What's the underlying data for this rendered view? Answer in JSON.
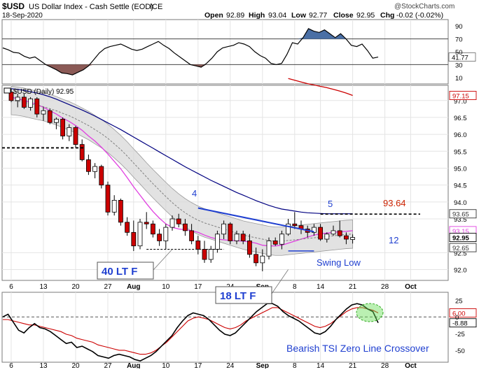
{
  "header": {
    "symbol": "$USD",
    "title": "US Dollar Index - Cash Settle (EOD)",
    "exchange": "ICE",
    "date": "18-Sep-2020",
    "watermark": "@StockCharts.com",
    "open_label": "Open",
    "open": "92.89",
    "high_label": "High",
    "high": "93.04",
    "low_label": "Low",
    "low": "92.77",
    "close_label": "Close",
    "close": "92.95",
    "chg_label": "Chg",
    "chg": "-0.02 (-0.02%)"
  },
  "rsi_panel": {
    "scale": [
      "90",
      "70",
      "50",
      "30",
      "10"
    ],
    "current_label": "41.77",
    "current_value": 41.77,
    "line_color": "#000000",
    "oversold_fill": "#8b5a56",
    "values": [
      56,
      53,
      49,
      48,
      43,
      40,
      42,
      36,
      30,
      26,
      22,
      17,
      16,
      14,
      18,
      22,
      28,
      38,
      48,
      55,
      58,
      60,
      62,
      58,
      54,
      52,
      54,
      58,
      62,
      66,
      60,
      55,
      48,
      42,
      36,
      30,
      28,
      26,
      32,
      40,
      50,
      56,
      58,
      60,
      64,
      62,
      58,
      50,
      44,
      40,
      32,
      30,
      32,
      46,
      64,
      62,
      72,
      86,
      82,
      80,
      84,
      78,
      72,
      78,
      70,
      60,
      58,
      62,
      52,
      40,
      41.77
    ]
  },
  "price_panel": {
    "legend": "$USD (Daily) 92.95",
    "scale": [
      "97.15",
      "97.0",
      "96.5",
      "96.0",
      "95.5",
      "95.0",
      "94.5",
      "94.0",
      "93.65",
      "93.5",
      "93.15",
      "92.95",
      "92.65",
      "92.5",
      "92.0"
    ],
    "scale_values": [
      97.0,
      96.5,
      96.0,
      95.5,
      95.0,
      94.5,
      94.0,
      93.5,
      92.5,
      92.0
    ],
    "ylim": [
      91.68,
      97.45
    ],
    "badges": [
      {
        "label": "97.15",
        "value": 97.15,
        "color": "#cc0000"
      },
      {
        "label": "93.65",
        "value": 93.65,
        "color": "#333333"
      },
      {
        "label": "93.15",
        "value": 93.15,
        "color": "#e040e0"
      },
      {
        "label": "92.95",
        "value": 92.95,
        "color": "#000000"
      },
      {
        "label": "92.65",
        "value": 92.65,
        "color": "#333333"
      }
    ],
    "annotations": {
      "wave4": "4",
      "wave5": "5",
      "price_target": "93.64",
      "price_target_value": 93.64,
      "count_12": "12",
      "swing_low": "Swing Low",
      "callout_aug": "40 LT F",
      "callout_sep": "18 LT F"
    },
    "colors": {
      "up": "#ffffff",
      "down": "#cc0000",
      "ma200": "#cc0000",
      "ma50": "#000080",
      "ma20": "#808080",
      "ma10": "#e040e0",
      "band": "#d8d8d8",
      "trendline": "#1f3fd0",
      "annot_blue": "#1f3fd0",
      "annot_red": "#cc0000"
    }
  },
  "tsi_panel": {
    "scale": [
      "25",
      "0",
      "-25",
      "-50"
    ],
    "scale_values": [
      25,
      0,
      -25,
      -50
    ],
    "ylim": [
      -68,
      37
    ],
    "badges": [
      {
        "label": "6.00",
        "value": 6.0,
        "color": "#cc0000"
      },
      {
        "label": "-8.88",
        "value": -8.88,
        "color": "#000000"
      }
    ],
    "note": "Bearish TSI Zero Line Crossover",
    "tsi_values": [
      0,
      4,
      -8,
      -20,
      -24,
      -16,
      -10,
      -16,
      -18,
      -22,
      -28,
      -34,
      -40,
      -38,
      -46,
      -44,
      -48,
      -52,
      -58,
      -60,
      -62,
      -58,
      -56,
      -58,
      -60,
      -64,
      -66,
      -62,
      -58,
      -52,
      -44,
      -36,
      -28,
      -16,
      -6,
      2,
      6,
      4,
      2,
      -4,
      -12,
      -20,
      -26,
      -28,
      -24,
      -16,
      -8,
      0,
      8,
      14,
      20,
      20,
      16,
      8,
      2,
      -2,
      -6,
      -12,
      -18,
      -24,
      -26,
      -22,
      -14,
      -4,
      4,
      12,
      18,
      20,
      18,
      12,
      8,
      -8.88
    ],
    "signal_values": [
      -4,
      -4,
      -6,
      -8,
      -10,
      -12,
      -12,
      -14,
      -16,
      -18,
      -20,
      -22,
      -26,
      -28,
      -32,
      -34,
      -36,
      -38,
      -42,
      -44,
      -46,
      -48,
      -50,
      -50,
      -52,
      -54,
      -56,
      -56,
      -54,
      -50,
      -44,
      -38,
      -30,
      -22,
      -14,
      -6,
      -2,
      0,
      -2,
      -4,
      -8,
      -12,
      -16,
      -18,
      -16,
      -12,
      -6,
      -2,
      2,
      6,
      10,
      14,
      14,
      10,
      6,
      2,
      -2,
      -6,
      -10,
      -14,
      -16,
      -14,
      -10,
      -4,
      2,
      8,
      12,
      14,
      14,
      12,
      10,
      6.0
    ],
    "zero_line_color": "#555555"
  },
  "x_axis": {
    "ticks": [
      {
        "label": "6",
        "i": 0
      },
      {
        "label": "13",
        "i": 5
      },
      {
        "label": "20",
        "i": 10
      },
      {
        "label": "27",
        "i": 15
      },
      {
        "label": "Aug",
        "i": 19,
        "bold": true
      },
      {
        "label": "10",
        "i": 24
      },
      {
        "label": "17",
        "i": 29
      },
      {
        "label": "24",
        "i": 34
      },
      {
        "label": "Sep",
        "i": 39,
        "bold": true
      },
      {
        "label": "8",
        "i": 44
      },
      {
        "label": "14",
        "i": 48
      },
      {
        "label": "21",
        "i": 53
      },
      {
        "label": "28",
        "i": 58
      },
      {
        "label": "Oct",
        "i": 62,
        "bold": true
      }
    ]
  },
  "chart_data": {
    "type": "candlestick",
    "title": "$USD US Dollar Index - Cash Settle (EOD)",
    "series": [
      {
        "name": "$USD (Daily)",
        "type": "candlestick",
        "ohlc": [
          [
            97.25,
            97.35,
            96.95,
            97.0
          ],
          [
            97.0,
            97.2,
            96.8,
            97.1
          ],
          [
            97.1,
            97.2,
            96.75,
            96.8
          ],
          [
            96.8,
            97.1,
            96.7,
            97.05
          ],
          [
            97.05,
            97.1,
            96.5,
            96.6
          ],
          [
            96.6,
            96.8,
            96.4,
            96.7
          ],
          [
            96.7,
            96.75,
            96.3,
            96.35
          ],
          [
            96.35,
            96.5,
            96.15,
            96.45
          ],
          [
            96.45,
            96.5,
            95.85,
            95.95
          ],
          [
            95.95,
            96.3,
            95.8,
            96.2
          ],
          [
            96.2,
            96.25,
            95.6,
            95.7
          ],
          [
            95.7,
            95.85,
            95.2,
            95.25
          ],
          [
            95.25,
            95.4,
            94.8,
            94.9
          ],
          [
            94.9,
            95.15,
            94.7,
            95.05
          ],
          [
            95.05,
            95.1,
            94.4,
            94.5
          ],
          [
            94.5,
            94.6,
            93.6,
            93.7
          ],
          [
            93.7,
            94.2,
            93.6,
            94.05
          ],
          [
            94.05,
            94.1,
            93.3,
            93.4
          ],
          [
            93.4,
            93.55,
            93.0,
            93.1
          ],
          [
            93.1,
            93.45,
            92.55,
            92.7
          ],
          [
            92.7,
            93.5,
            92.6,
            93.4
          ],
          [
            93.4,
            93.7,
            93.2,
            93.35
          ],
          [
            93.35,
            93.45,
            92.95,
            93.05
          ],
          [
            93.05,
            93.2,
            92.7,
            92.85
          ],
          [
            92.85,
            93.35,
            92.6,
            93.25
          ],
          [
            93.25,
            93.6,
            93.15,
            93.5
          ],
          [
            93.5,
            93.65,
            93.25,
            93.35
          ],
          [
            93.35,
            93.5,
            93.0,
            93.15
          ],
          [
            93.15,
            93.35,
            92.75,
            92.85
          ],
          [
            92.85,
            93.0,
            92.45,
            92.6
          ],
          [
            92.6,
            92.85,
            92.2,
            92.3
          ],
          [
            92.3,
            92.7,
            92.2,
            92.6
          ],
          [
            92.6,
            93.15,
            92.5,
            93.05
          ],
          [
            93.05,
            93.45,
            92.9,
            93.35
          ],
          [
            93.35,
            93.4,
            92.75,
            92.85
          ],
          [
            92.85,
            93.15,
            92.75,
            93.05
          ],
          [
            93.05,
            93.15,
            92.75,
            92.85
          ],
          [
            92.85,
            93.05,
            92.35,
            92.45
          ],
          [
            92.45,
            92.65,
            92.1,
            92.2
          ],
          [
            92.2,
            92.6,
            91.95,
            92.4
          ],
          [
            92.4,
            92.95,
            92.3,
            92.85
          ],
          [
            92.85,
            92.95,
            92.7,
            92.75
          ],
          [
            92.75,
            93.15,
            92.6,
            93.05
          ],
          [
            93.05,
            93.5,
            93.0,
            93.35
          ],
          [
            93.35,
            93.7,
            93.2,
            93.3
          ],
          [
            93.3,
            93.45,
            93.05,
            93.2
          ],
          [
            93.2,
            93.3,
            92.95,
            93.1
          ],
          [
            93.1,
            93.35,
            93.0,
            93.25
          ],
          [
            93.25,
            93.35,
            92.85,
            92.9
          ],
          [
            92.9,
            93.1,
            92.8,
            93.05
          ],
          [
            93.05,
            93.3,
            93.0,
            93.15
          ],
          [
            93.15,
            93.45,
            92.95,
            93.0
          ],
          [
            93.0,
            93.1,
            92.75,
            92.9
          ],
          [
            92.89,
            93.04,
            92.77,
            92.95
          ]
        ]
      },
      {
        "name": "MA 10",
        "values": [
          97.1,
          97.05,
          97.0,
          96.95,
          96.88,
          96.8,
          96.7,
          96.6,
          96.48,
          96.38,
          96.26,
          96.12,
          95.95,
          95.8,
          95.62,
          95.42,
          95.2,
          94.98,
          94.72,
          94.45,
          94.2,
          93.95,
          93.72,
          93.52,
          93.35,
          93.25,
          93.2,
          93.18,
          93.15,
          93.1,
          93.02,
          92.95,
          92.9,
          92.88,
          92.86,
          92.85,
          92.84,
          92.82,
          92.78,
          92.72,
          92.7,
          92.7,
          92.72,
          92.78,
          92.84,
          92.9,
          92.96,
          93.02,
          93.06,
          93.08,
          93.1,
          93.12,
          93.13,
          93.15
        ]
      },
      {
        "name": "MA 20",
        "values": [
          97.0,
          96.98,
          96.95,
          96.9,
          96.86,
          96.82,
          96.76,
          96.7,
          96.62,
          96.55,
          96.46,
          96.36,
          96.26,
          96.14,
          96.02,
          95.88,
          95.72,
          95.55,
          95.36,
          95.15,
          94.95,
          94.74,
          94.54,
          94.35,
          94.16,
          93.98,
          93.82,
          93.68,
          93.56,
          93.46,
          93.38,
          93.32,
          93.26,
          93.2,
          93.14,
          93.08,
          93.02,
          92.98,
          92.94,
          92.9,
          92.86,
          92.84,
          92.84,
          92.86,
          92.88,
          92.9,
          92.92,
          92.94,
          92.96,
          92.98,
          93.0,
          93.02,
          93.04,
          93.05
        ]
      },
      {
        "name": "MA 50",
        "values": [
          97.35,
          97.33,
          97.3,
          97.26,
          97.22,
          97.17,
          97.11,
          97.04,
          96.96,
          96.88,
          96.8,
          96.72,
          96.63,
          96.54,
          96.44,
          96.34,
          96.24,
          96.14,
          96.03,
          95.92,
          95.81,
          95.7,
          95.59,
          95.48,
          95.37,
          95.26,
          95.15,
          95.04,
          94.94,
          94.84,
          94.74,
          94.64,
          94.55,
          94.46,
          94.37,
          94.28,
          94.2,
          94.12,
          94.04,
          93.97,
          93.9,
          93.84,
          93.79,
          93.76,
          93.73,
          93.7,
          93.68,
          93.67,
          93.66,
          93.65,
          93.65,
          93.65,
          93.65,
          93.65
        ]
      },
      {
        "name": "MA 200",
        "values": [
          null,
          null,
          null,
          null,
          null,
          null,
          null,
          null,
          null,
          null,
          null,
          null,
          null,
          null,
          null,
          null,
          null,
          null,
          null,
          null,
          null,
          null,
          null,
          null,
          null,
          null,
          null,
          null,
          null,
          null,
          null,
          null,
          null,
          null,
          null,
          null,
          null,
          null,
          null,
          null,
          null,
          null,
          null,
          97.65,
          97.6,
          97.55,
          97.5,
          97.46,
          97.42,
          97.38,
          97.33,
          97.28,
          97.22,
          97.15
        ]
      }
    ],
    "band": {
      "upper_offset": 0.42,
      "lower_offset": 0.42
    },
    "ylim": [
      91.68,
      97.45
    ]
  }
}
